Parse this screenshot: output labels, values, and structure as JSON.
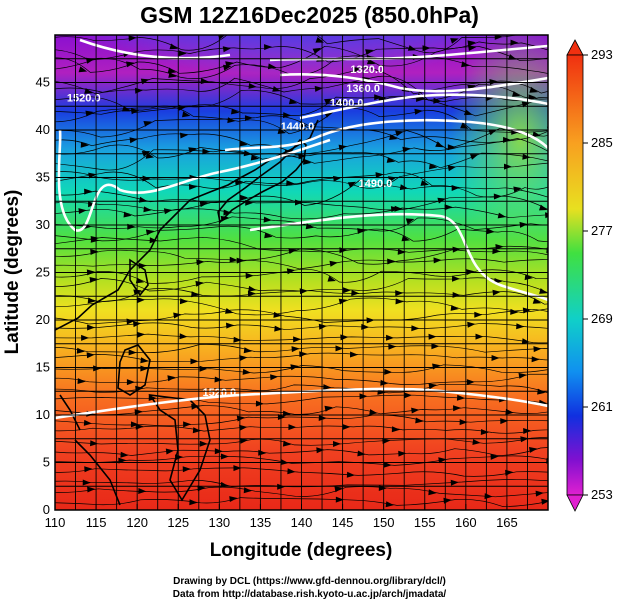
{
  "title": "GSM 12Z16Dec2025 (850.0hPa)",
  "x_axis": {
    "label": "Longitude (degrees)",
    "ticks": [
      "110",
      "115",
      "120",
      "125",
      "130",
      "135",
      "140",
      "145",
      "150",
      "155",
      "160",
      "165"
    ],
    "range": [
      110,
      170
    ]
  },
  "y_axis": {
    "label": "Latitude  (degrees)",
    "ticks": [
      "0",
      "5",
      "10",
      "15",
      "20",
      "25",
      "30",
      "35",
      "40",
      "45"
    ],
    "range": [
      0,
      50
    ]
  },
  "colorbar": {
    "ticks": [
      "293",
      "285",
      "277",
      "269",
      "261",
      "253"
    ],
    "range": [
      253,
      293
    ]
  },
  "contours": [
    {
      "label": "1320.0",
      "lon": 148.0,
      "lat": 46.0
    },
    {
      "label": "1360.0",
      "lon": 147.5,
      "lat": 44.0
    },
    {
      "label": "1400.0",
      "lon": 145.5,
      "lat": 42.5
    },
    {
      "label": "1440.0",
      "lon": 139.5,
      "lat": 40.0
    },
    {
      "label": "1520.0",
      "lon": 113.5,
      "lat": 43.0
    },
    {
      "label": "1490.0",
      "lon": 149.0,
      "lat": 34.0
    },
    {
      "label": "1520.0",
      "lon": 130.0,
      "lat": 12.0
    }
  ],
  "credits": {
    "line1": "Drawing by DCL (https://www.gfd-dennou.org/library/dcl/)",
    "line2": "Data from http://database.rish.kyoto-u.ac.jp/arch/jmadata/"
  },
  "colors": {
    "cold": "#c000c0",
    "cool": "#0040ff",
    "mild": "#00e0a0",
    "warm": "#ffe000",
    "hot": "#ff2000"
  }
}
